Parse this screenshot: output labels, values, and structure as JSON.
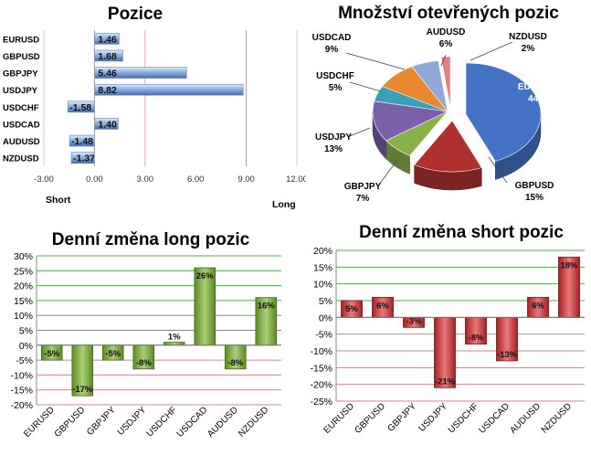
{
  "chart_data": [
    {
      "type": "bar",
      "orientation": "horizontal",
      "title": "Pozice",
      "categories": [
        "EURUSD",
        "GBPUSD",
        "GBPJPY",
        "USDJPY",
        "USDCHF",
        "USDCAD",
        "AUDUSD",
        "NZDUSD"
      ],
      "values": [
        1.46,
        1.68,
        5.46,
        8.82,
        -1.58,
        1.4,
        -1.48,
        -1.37
      ],
      "value_labels": [
        "1.46",
        "1.68",
        "5.46",
        "8.82",
        "-1.58",
        "1.40",
        "-1.48",
        "-1.37"
      ],
      "xlim": [
        -3,
        12
      ],
      "xticks": [
        "-3.00",
        "0.00",
        "3.00",
        "6.00",
        "9.00",
        "12.00"
      ],
      "left_caption": "Short",
      "right_caption": "Long",
      "colors": {
        "bar": "#4f7fc0",
        "short_line": "#e3a9b0",
        "long_line": "#6cbf6c"
      }
    },
    {
      "type": "pie",
      "title": "Množství otevřených pozic",
      "slices": [
        {
          "label": "EURUSD",
          "value": 44,
          "text": "44%",
          "color": "#4472c4"
        },
        {
          "label": "GBPUSD",
          "value": 15,
          "text": "15%",
          "color": "#b03030"
        },
        {
          "label": "GBPJPY",
          "value": 7,
          "text": "7%",
          "color": "#8ab04a"
        },
        {
          "label": "USDJPY",
          "value": 13,
          "text": "13%",
          "color": "#7b5fa8"
        },
        {
          "label": "USDCHF",
          "value": 5,
          "text": "5%",
          "color": "#3aa0b8"
        },
        {
          "label": "USDCAD",
          "value": 9,
          "text": "9%",
          "color": "#e8892f"
        },
        {
          "label": "AUDUSD",
          "value": 6,
          "text": "6%",
          "color": "#8fa8d8"
        },
        {
          "label": "NZDUSD",
          "value": 2,
          "text": "2%",
          "color": "#e08080"
        }
      ]
    },
    {
      "type": "bar",
      "title": "Denní změna long pozic",
      "categories": [
        "EURUSD",
        "GBPUSD",
        "GBPJPY",
        "USDJPY",
        "USDCHF",
        "USDCAD",
        "AUDUSD",
        "NZDUSD"
      ],
      "values": [
        -5,
        -17,
        -5,
        -8,
        1,
        26,
        -8,
        16
      ],
      "value_labels": [
        "-5%",
        "-17%",
        "-5%",
        "-8%",
        "1%",
        "26%",
        "-8%",
        "16%"
      ],
      "ylim": [
        -20,
        30
      ],
      "yticks": [
        "30%",
        "25%",
        "20%",
        "15%",
        "10%",
        "5%",
        "0%",
        "-5%",
        "-10%",
        "-15%",
        "-20%"
      ],
      "colors": {
        "bar": "#6e9a2e",
        "grid": "#4caf50"
      }
    },
    {
      "type": "bar",
      "title": "Denní změna short pozic",
      "categories": [
        "EURUSD",
        "GBPUSD",
        "GBPJPY",
        "USDJPY",
        "USDCHF",
        "USDCAD",
        "AUDUSD",
        "NZDUSD"
      ],
      "values": [
        5,
        6,
        -3,
        -21,
        -8,
        -13,
        6,
        18
      ],
      "value_labels": [
        "5%",
        "6%",
        "-3%",
        "-21%",
        "-8%",
        "-13%",
        "6%",
        "18%"
      ],
      "ylim": [
        -25,
        20
      ],
      "yticks": [
        "20%",
        "15%",
        "10%",
        "5%",
        "0%",
        "-5%",
        "-10%",
        "-15%",
        "-20%",
        "-25%"
      ],
      "colors": {
        "bar": "#c63a3a",
        "grid_pos": "#4caf50",
        "grid_neg": "#c98a8a"
      }
    }
  ]
}
